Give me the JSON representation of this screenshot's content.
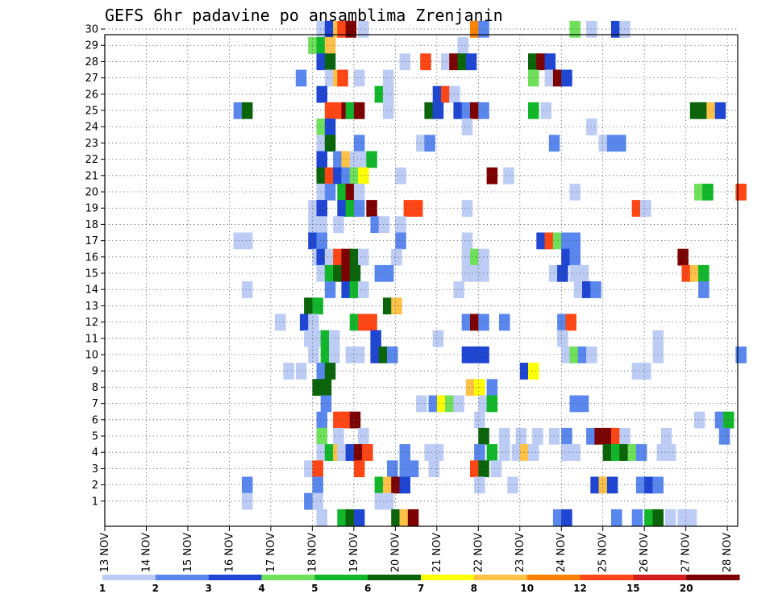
{
  "chart_data": {
    "type": "heatmap",
    "title": "GEFS 6hr padavine po ansamblima Zrenjanin",
    "xlabel": "",
    "ylabel": "",
    "x_tick_labels": [
      "13 NOV",
      "14 NOV",
      "15 NOV",
      "16 NOV",
      "17 NOV",
      "18 NOV",
      "19 NOV",
      "20 NOV",
      "21 NOV",
      "22 NOV",
      "23 NOV",
      "24 NOV",
      "25 NOV",
      "26 NOV",
      "27 NOV",
      "28 NOV"
    ],
    "y_tick_labels": [
      "1",
      "2",
      "3",
      "4",
      "5",
      "6",
      "7",
      "8",
      "9",
      "10",
      "11",
      "12",
      "13",
      "14",
      "15",
      "16",
      "17",
      "18",
      "19",
      "20",
      "21",
      "22",
      "23",
      "24",
      "25",
      "26",
      "27",
      "28",
      "29",
      "30"
    ],
    "x_range_days": [
      0,
      15.25
    ],
    "y_range_members": [
      0,
      30
    ],
    "grid": true,
    "time_step_hours": 6,
    "colorbar": {
      "labels": [
        "1",
        "2",
        "3",
        "4",
        "5",
        "6",
        "7",
        "8",
        "10",
        "12",
        "15",
        "20"
      ],
      "colors": [
        "#bcccf5",
        "#5a87ee",
        "#1e46d2",
        "#6ee05a",
        "#11b62a",
        "#0a640a",
        "#ffff00",
        "#ffc247",
        "#ff8200",
        "#ff4614",
        "#d21e1e",
        "#7d0000"
      ]
    },
    "cells": [
      [
        30,
        5.1,
        1
      ],
      [
        30,
        5.3,
        3
      ],
      [
        30,
        5.5,
        8
      ],
      [
        30,
        5.6,
        10
      ],
      [
        30,
        5.8,
        13
      ],
      [
        30,
        6.1,
        1
      ],
      [
        30,
        8.8,
        9
      ],
      [
        30,
        9.0,
        2
      ],
      [
        30,
        11.2,
        4
      ],
      [
        30,
        11.6,
        1
      ],
      [
        30,
        12.2,
        3
      ],
      [
        30,
        12.4,
        1
      ],
      [
        29,
        4.9,
        4
      ],
      [
        29,
        5.1,
        5
      ],
      [
        29,
        5.3,
        8
      ],
      [
        29,
        8.5,
        1
      ],
      [
        28,
        5.1,
        3
      ],
      [
        28,
        5.3,
        6
      ],
      [
        28,
        7.1,
        1
      ],
      [
        28,
        7.6,
        10
      ],
      [
        28,
        8.1,
        1
      ],
      [
        28,
        8.3,
        13
      ],
      [
        28,
        8.5,
        6
      ],
      [
        28,
        8.7,
        3
      ],
      [
        28,
        10.2,
        6
      ],
      [
        28,
        10.4,
        13
      ],
      [
        28,
        10.6,
        3
      ],
      [
        27,
        4.6,
        2
      ],
      [
        27,
        5.3,
        1
      ],
      [
        27,
        5.5,
        8
      ],
      [
        27,
        5.6,
        10
      ],
      [
        27,
        6.0,
        1
      ],
      [
        27,
        6.7,
        1
      ],
      [
        27,
        10.2,
        4
      ],
      [
        27,
        10.6,
        1
      ],
      [
        27,
        10.8,
        12
      ],
      [
        27,
        11.0,
        3
      ],
      [
        26,
        5.1,
        3
      ],
      [
        26,
        6.5,
        5
      ],
      [
        26,
        6.7,
        1
      ],
      [
        26,
        7.9,
        3
      ],
      [
        26,
        8.1,
        10
      ],
      [
        26,
        8.3,
        1
      ],
      [
        25,
        3.1,
        2
      ],
      [
        25,
        3.3,
        6
      ],
      [
        25,
        5.3,
        10
      ],
      [
        25,
        5.5,
        10
      ],
      [
        25,
        5.7,
        12
      ],
      [
        25,
        5.8,
        5
      ],
      [
        25,
        6.0,
        12
      ],
      [
        25,
        6.7,
        1
      ],
      [
        25,
        7.7,
        6
      ],
      [
        25,
        7.9,
        3
      ],
      [
        25,
        8.4,
        3
      ],
      [
        25,
        8.6,
        2
      ],
      [
        25,
        8.8,
        12
      ],
      [
        25,
        9.0,
        2
      ],
      [
        25,
        10.2,
        5
      ],
      [
        25,
        10.5,
        1
      ],
      [
        25,
        14.1,
        6
      ],
      [
        25,
        14.3,
        6
      ],
      [
        25,
        14.5,
        8
      ],
      [
        25,
        14.7,
        3
      ],
      [
        24,
        5.1,
        4
      ],
      [
        24,
        5.3,
        3
      ],
      [
        24,
        8.6,
        1
      ],
      [
        24,
        11.6,
        1
      ],
      [
        23,
        5.1,
        1
      ],
      [
        23,
        5.3,
        6
      ],
      [
        23,
        6.0,
        2
      ],
      [
        23,
        7.5,
        1
      ],
      [
        23,
        7.7,
        2
      ],
      [
        23,
        10.7,
        2
      ],
      [
        23,
        11.9,
        1
      ],
      [
        23,
        12.1,
        2
      ],
      [
        23,
        12.3,
        2
      ],
      [
        22,
        5.1,
        3
      ],
      [
        22,
        5.5,
        2
      ],
      [
        22,
        5.7,
        8
      ],
      [
        22,
        5.9,
        1
      ],
      [
        22,
        6.1,
        1
      ],
      [
        22,
        6.3,
        5
      ],
      [
        21,
        5.1,
        6
      ],
      [
        21,
        5.3,
        10
      ],
      [
        21,
        5.5,
        3
      ],
      [
        21,
        5.7,
        2
      ],
      [
        21,
        5.9,
        4
      ],
      [
        21,
        6.1,
        7
      ],
      [
        21,
        7.0,
        1
      ],
      [
        21,
        9.2,
        13
      ],
      [
        21,
        9.6,
        1
      ],
      [
        20,
        5.1,
        1
      ],
      [
        20,
        5.3,
        2
      ],
      [
        20,
        5.6,
        5
      ],
      [
        20,
        5.8,
        15
      ],
      [
        20,
        6.0,
        1
      ],
      [
        20,
        11.2,
        1
      ],
      [
        20,
        14.2,
        4
      ],
      [
        20,
        14.4,
        5
      ],
      [
        20,
        15.2,
        10
      ],
      [
        19,
        4.9,
        1
      ],
      [
        19,
        5.1,
        3
      ],
      [
        19,
        5.6,
        3
      ],
      [
        19,
        5.8,
        5
      ],
      [
        19,
        6.0,
        2
      ],
      [
        19,
        6.3,
        13
      ],
      [
        19,
        7.2,
        10
      ],
      [
        19,
        7.4,
        10
      ],
      [
        19,
        8.6,
        1
      ],
      [
        19,
        12.7,
        10
      ],
      [
        19,
        12.9,
        1
      ],
      [
        18,
        4.9,
        1
      ],
      [
        18,
        5.1,
        1
      ],
      [
        18,
        5.5,
        1
      ],
      [
        18,
        6.4,
        2
      ],
      [
        18,
        6.6,
        1
      ],
      [
        18,
        7.0,
        1
      ],
      [
        17,
        3.1,
        1
      ],
      [
        17,
        3.3,
        1
      ],
      [
        17,
        4.9,
        3
      ],
      [
        17,
        5.1,
        2
      ],
      [
        17,
        7.0,
        2
      ],
      [
        17,
        8.6,
        1
      ],
      [
        17,
        10.4,
        3
      ],
      [
        17,
        10.6,
        10
      ],
      [
        17,
        10.8,
        4
      ],
      [
        17,
        11.0,
        2
      ],
      [
        17,
        11.2,
        2
      ],
      [
        16,
        5.0,
        1
      ],
      [
        16,
        5.1,
        3
      ],
      [
        16,
        5.3,
        1
      ],
      [
        16,
        5.5,
        10
      ],
      [
        16,
        5.7,
        13
      ],
      [
        16,
        5.9,
        6
      ],
      [
        16,
        6.1,
        1
      ],
      [
        16,
        6.9,
        1
      ],
      [
        16,
        8.6,
        1
      ],
      [
        16,
        8.8,
        4
      ],
      [
        16,
        9.0,
        1
      ],
      [
        16,
        11.0,
        3
      ],
      [
        16,
        11.2,
        2
      ],
      [
        16,
        13.8,
        12
      ],
      [
        15,
        5.1,
        1
      ],
      [
        15,
        5.3,
        5
      ],
      [
        15,
        5.5,
        6
      ],
      [
        15,
        5.7,
        13
      ],
      [
        15,
        5.9,
        6
      ],
      [
        15,
        6.5,
        2
      ],
      [
        15,
        6.7,
        2
      ],
      [
        15,
        8.6,
        1
      ],
      [
        15,
        8.8,
        1
      ],
      [
        15,
        9.0,
        1
      ],
      [
        15,
        10.7,
        1
      ],
      [
        15,
        10.9,
        3
      ],
      [
        15,
        11.2,
        1
      ],
      [
        15,
        11.4,
        1
      ],
      [
        15,
        13.9,
        10
      ],
      [
        15,
        14.1,
        8
      ],
      [
        15,
        14.3,
        5
      ],
      [
        14,
        3.3,
        1
      ],
      [
        14,
        5.3,
        2
      ],
      [
        14,
        5.7,
        3
      ],
      [
        14,
        5.9,
        5
      ],
      [
        14,
        6.1,
        1
      ],
      [
        14,
        8.4,
        1
      ],
      [
        14,
        11.3,
        1
      ],
      [
        14,
        11.5,
        3
      ],
      [
        14,
        11.7,
        2
      ],
      [
        14,
        14.3,
        2
      ],
      [
        13,
        4.8,
        6
      ],
      [
        13,
        5.0,
        5
      ],
      [
        13,
        6.7,
        6
      ],
      [
        13,
        6.9,
        8
      ],
      [
        12,
        4.1,
        1
      ],
      [
        12,
        4.7,
        3
      ],
      [
        12,
        4.9,
        1
      ],
      [
        12,
        5.9,
        5
      ],
      [
        12,
        6.1,
        10
      ],
      [
        12,
        6.3,
        10
      ],
      [
        12,
        8.6,
        2
      ],
      [
        12,
        8.8,
        13
      ],
      [
        12,
        9.0,
        2
      ],
      [
        12,
        9.5,
        2
      ],
      [
        12,
        10.9,
        2
      ],
      [
        12,
        11.1,
        10
      ],
      [
        11,
        4.8,
        1
      ],
      [
        11,
        5.0,
        1
      ],
      [
        11,
        5.2,
        5
      ],
      [
        11,
        5.4,
        1
      ],
      [
        11,
        6.4,
        3
      ],
      [
        11,
        7.9,
        1
      ],
      [
        11,
        10.9,
        1
      ],
      [
        11,
        13.2,
        1
      ],
      [
        10,
        4.9,
        1
      ],
      [
        10,
        5.2,
        5
      ],
      [
        10,
        5.4,
        1
      ],
      [
        10,
        5.8,
        1
      ],
      [
        10,
        6.0,
        1
      ],
      [
        10,
        6.4,
        3
      ],
      [
        10,
        6.6,
        6
      ],
      [
        10,
        6.8,
        2
      ],
      [
        10,
        8.6,
        3
      ],
      [
        10,
        8.8,
        3
      ],
      [
        10,
        9.0,
        3
      ],
      [
        10,
        11.0,
        1
      ],
      [
        10,
        11.2,
        4
      ],
      [
        10,
        11.4,
        2
      ],
      [
        10,
        11.6,
        1
      ],
      [
        10,
        13.2,
        1
      ],
      [
        10,
        15.2,
        2
      ],
      [
        9,
        4.3,
        1
      ],
      [
        9,
        4.6,
        1
      ],
      [
        9,
        5.1,
        2
      ],
      [
        9,
        5.3,
        6
      ],
      [
        9,
        10.0,
        3
      ],
      [
        9,
        10.2,
        7
      ],
      [
        9,
        12.7,
        1
      ],
      [
        9,
        12.9,
        1
      ],
      [
        8,
        5.0,
        6
      ],
      [
        8,
        5.2,
        6
      ],
      [
        8,
        8.7,
        8
      ],
      [
        8,
        8.9,
        7
      ],
      [
        8,
        9.2,
        2
      ],
      [
        7,
        5.2,
        2
      ],
      [
        7,
        7.5,
        1
      ],
      [
        7,
        7.8,
        2
      ],
      [
        7,
        8.0,
        7
      ],
      [
        7,
        8.2,
        4
      ],
      [
        7,
        8.4,
        1
      ],
      [
        7,
        9.0,
        1
      ],
      [
        7,
        9.2,
        5
      ],
      [
        7,
        11.2,
        2
      ],
      [
        7,
        11.4,
        2
      ],
      [
        6,
        5.1,
        2
      ],
      [
        6,
        5.5,
        10
      ],
      [
        6,
        5.7,
        10
      ],
      [
        6,
        5.9,
        14
      ],
      [
        6,
        8.9,
        1
      ],
      [
        6,
        14.2,
        1
      ],
      [
        6,
        14.7,
        2
      ],
      [
        6,
        14.9,
        5
      ],
      [
        5,
        5.1,
        4
      ],
      [
        5,
        5.5,
        1
      ],
      [
        5,
        6.1,
        1
      ],
      [
        5,
        9.0,
        6
      ],
      [
        5,
        9.5,
        1
      ],
      [
        5,
        9.9,
        1
      ],
      [
        5,
        10.3,
        1
      ],
      [
        5,
        10.7,
        1
      ],
      [
        5,
        11.0,
        2
      ],
      [
        5,
        11.6,
        2
      ],
      [
        5,
        11.8,
        20
      ],
      [
        5,
        12.0,
        12
      ],
      [
        5,
        12.2,
        10
      ],
      [
        5,
        12.4,
        1
      ],
      [
        5,
        13.4,
        1
      ],
      [
        5,
        14.8,
        2
      ],
      [
        4,
        5.1,
        1
      ],
      [
        4,
        5.3,
        5
      ],
      [
        4,
        5.5,
        8
      ],
      [
        4,
        5.6,
        1
      ],
      [
        4,
        5.8,
        3
      ],
      [
        4,
        6.0,
        13
      ],
      [
        4,
        6.2,
        10
      ],
      [
        4,
        7.1,
        2
      ],
      [
        4,
        7.7,
        1
      ],
      [
        4,
        7.9,
        1
      ],
      [
        4,
        8.9,
        2
      ],
      [
        4,
        9.2,
        5
      ],
      [
        4,
        9.5,
        1
      ],
      [
        4,
        9.8,
        1
      ],
      [
        4,
        10.0,
        8
      ],
      [
        4,
        10.2,
        1
      ],
      [
        4,
        11.0,
        1
      ],
      [
        4,
        11.2,
        1
      ],
      [
        4,
        12.0,
        6
      ],
      [
        4,
        12.2,
        5
      ],
      [
        4,
        12.4,
        6
      ],
      [
        4,
        12.6,
        4
      ],
      [
        4,
        12.8,
        2
      ],
      [
        4,
        13.3,
        1
      ],
      [
        4,
        13.5,
        1
      ],
      [
        3,
        4.8,
        1
      ],
      [
        3,
        5.0,
        10
      ],
      [
        3,
        6.0,
        10
      ],
      [
        3,
        6.8,
        2
      ],
      [
        3,
        7.1,
        2
      ],
      [
        3,
        7.3,
        2
      ],
      [
        3,
        7.8,
        1
      ],
      [
        3,
        8.8,
        10
      ],
      [
        3,
        9.0,
        6
      ],
      [
        3,
        9.3,
        1
      ],
      [
        2,
        3.3,
        2
      ],
      [
        2,
        5.0,
        2
      ],
      [
        2,
        6.5,
        5
      ],
      [
        2,
        6.7,
        8
      ],
      [
        2,
        6.9,
        14
      ],
      [
        2,
        7.1,
        3
      ],
      [
        2,
        8.9,
        1
      ],
      [
        2,
        9.7,
        1
      ],
      [
        2,
        11.7,
        3
      ],
      [
        2,
        11.9,
        8
      ],
      [
        2,
        12.1,
        3
      ],
      [
        2,
        12.8,
        2
      ],
      [
        2,
        13.0,
        3
      ],
      [
        2,
        13.2,
        2
      ],
      [
        1,
        3.3,
        1
      ],
      [
        1,
        4.8,
        2
      ],
      [
        1,
        5.0,
        1
      ],
      [
        1,
        6.5,
        1
      ],
      [
        1,
        6.7,
        1
      ],
      [
        0,
        5.1,
        1
      ],
      [
        0,
        5.6,
        5
      ],
      [
        0,
        5.8,
        6
      ],
      [
        0,
        6.0,
        3
      ],
      [
        0,
        6.9,
        6
      ],
      [
        0,
        7.1,
        8
      ],
      [
        0,
        7.3,
        13
      ],
      [
        0,
        10.8,
        2
      ],
      [
        0,
        11.0,
        3
      ],
      [
        0,
        12.2,
        2
      ],
      [
        0,
        12.7,
        2
      ],
      [
        0,
        13.0,
        5
      ],
      [
        0,
        13.2,
        6
      ],
      [
        0,
        13.5,
        1
      ],
      [
        0,
        13.8,
        1
      ],
      [
        0,
        14.0,
        1
      ]
    ]
  }
}
